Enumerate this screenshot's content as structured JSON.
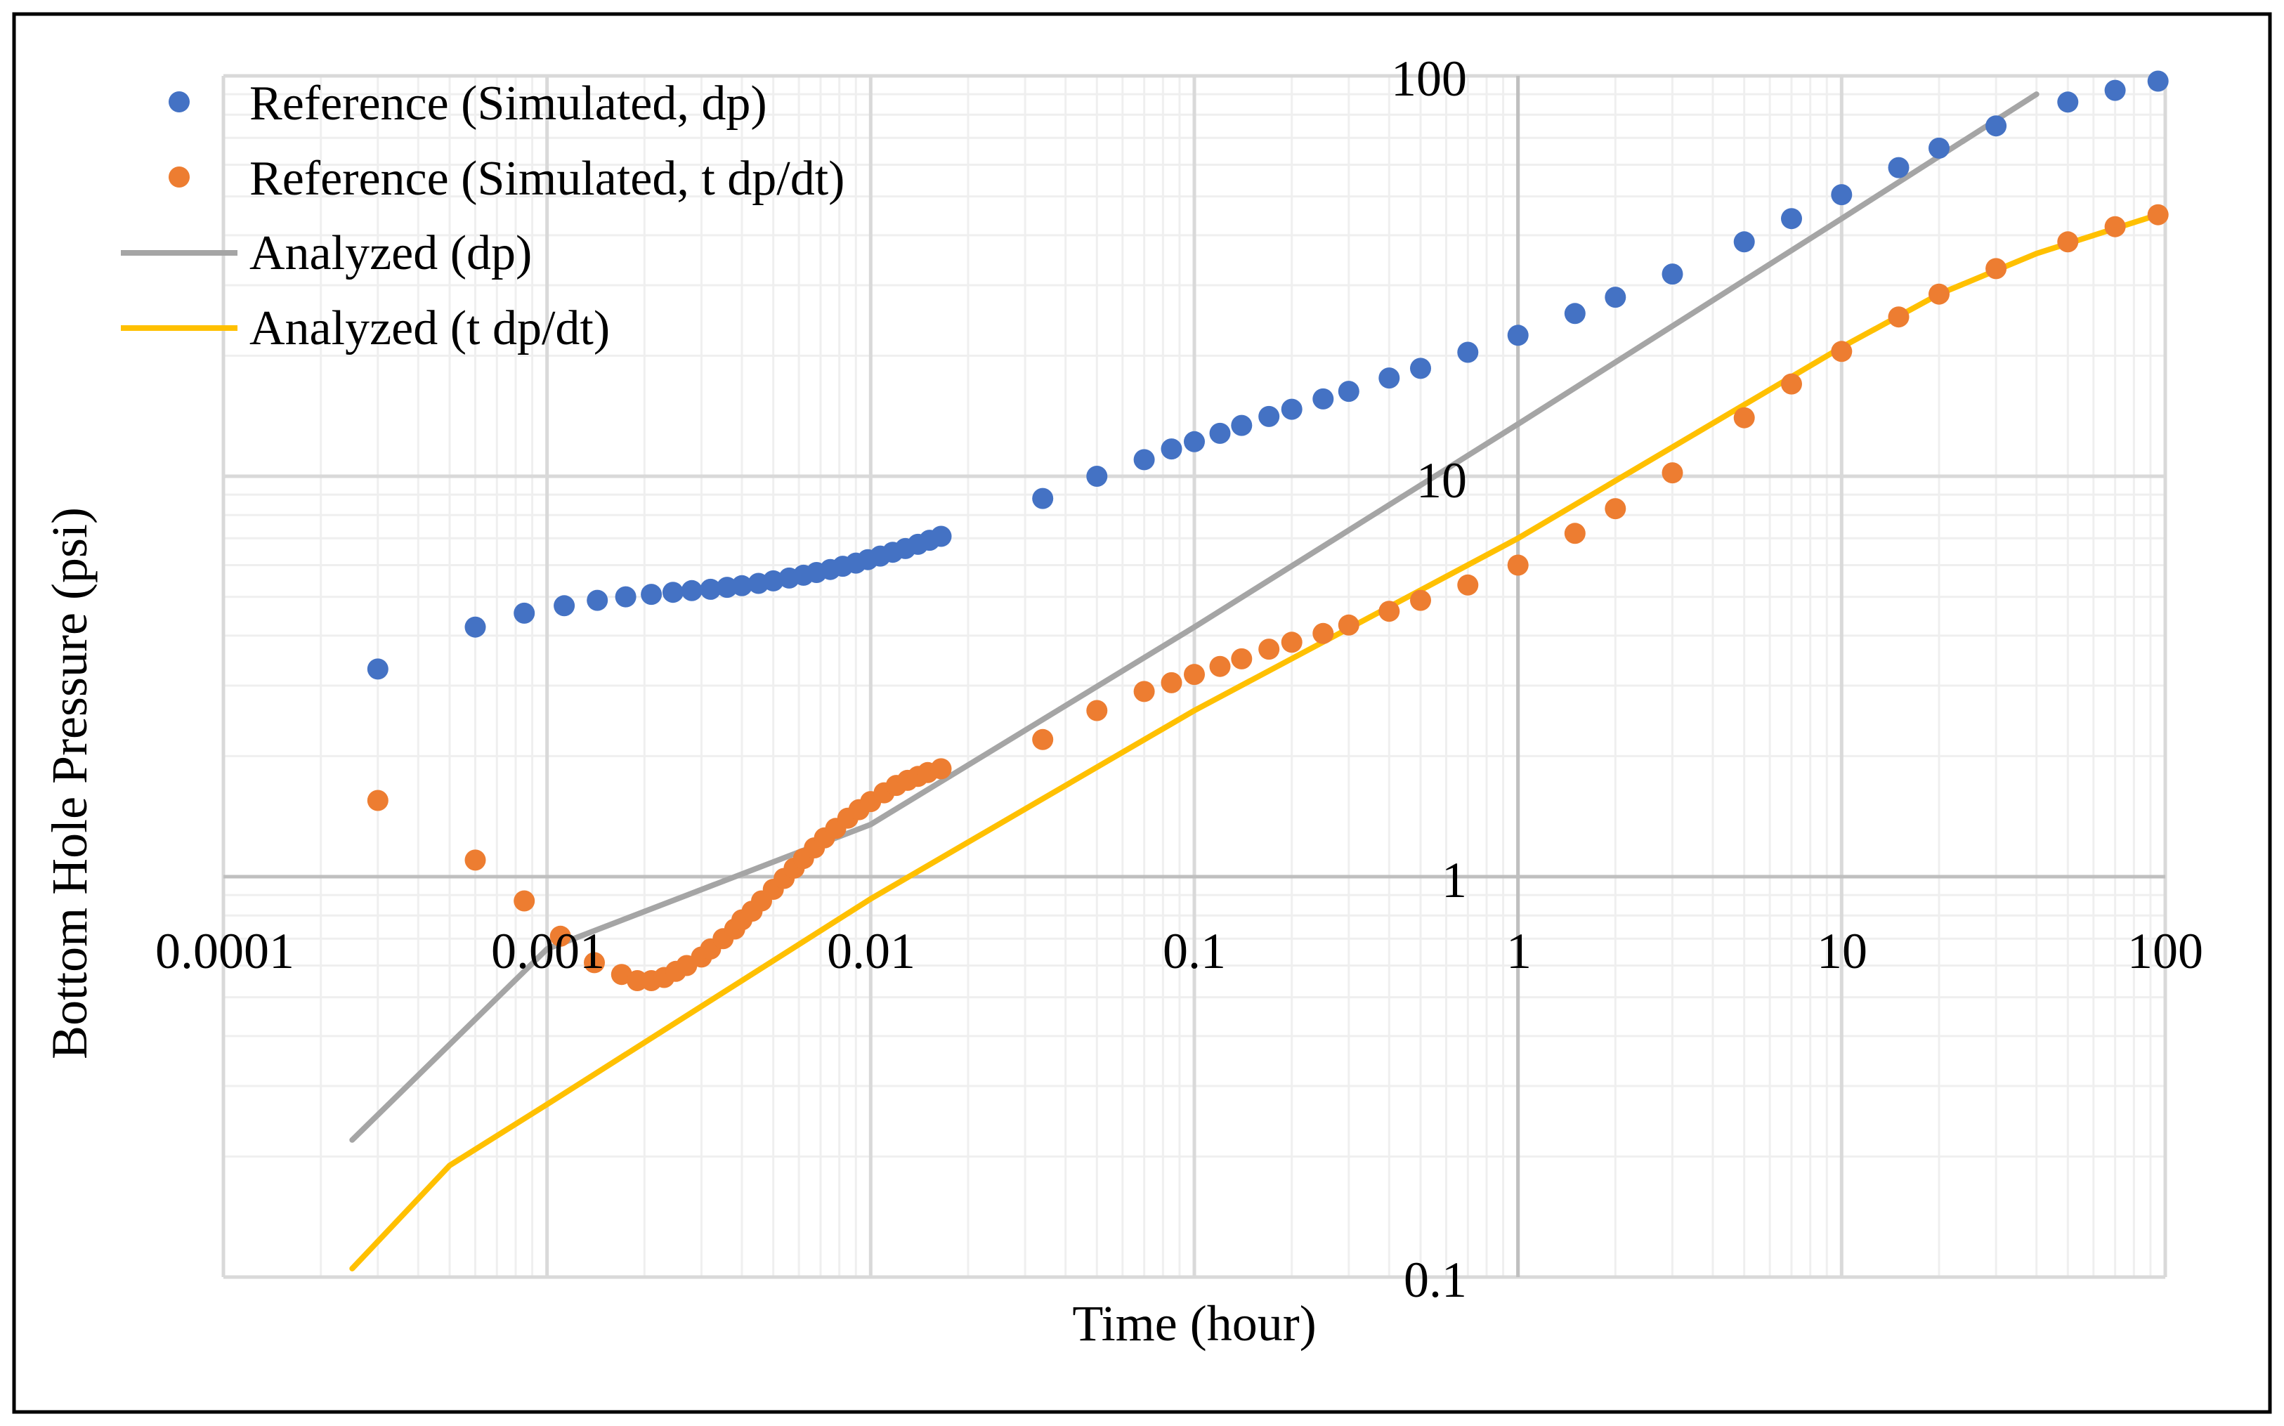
{
  "chart_data": {
    "type": "scatter",
    "xlabel": "Time (hour)",
    "ylabel": "Bottom Hole Pressure (psi)",
    "xscale": "log",
    "yscale": "log",
    "xlim": [
      0.0001,
      100
    ],
    "ylim": [
      0.1,
      100
    ],
    "x_tick_labels": [
      "0.0001",
      "0.001",
      "0.01",
      "0.1",
      "1",
      "10",
      "100"
    ],
    "y_tick_labels": [
      "0.1",
      "1",
      "10",
      "100"
    ],
    "grid": true,
    "legend_position": "top-left",
    "series": [
      {
        "name": "Reference (Simulated, dp)",
        "kind": "points",
        "color": "#4472C4",
        "x": [
          0.0003,
          0.0006,
          0.00085,
          0.00113,
          0.00143,
          0.00175,
          0.0021,
          0.00245,
          0.0028,
          0.0032,
          0.0036,
          0.004,
          0.0045,
          0.005,
          0.0056,
          0.0062,
          0.0068,
          0.0075,
          0.0082,
          0.009,
          0.0098,
          0.0107,
          0.0117,
          0.0128,
          0.014,
          0.0152,
          0.0165,
          0.034,
          0.05,
          0.07,
          0.085,
          0.1,
          0.12,
          0.14,
          0.17,
          0.2,
          0.25,
          0.3,
          0.4,
          0.5,
          0.7,
          1,
          1.5,
          2,
          3,
          5,
          7,
          10,
          15,
          20,
          30,
          50,
          70,
          95
        ],
        "y": [
          3.3,
          4.2,
          4.55,
          4.75,
          4.9,
          5.0,
          5.07,
          5.13,
          5.18,
          5.22,
          5.28,
          5.33,
          5.4,
          5.48,
          5.57,
          5.66,
          5.75,
          5.85,
          5.96,
          6.07,
          6.19,
          6.32,
          6.46,
          6.6,
          6.76,
          6.92,
          7.08,
          8.8,
          10.0,
          11.0,
          11.7,
          12.2,
          12.8,
          13.4,
          14.1,
          14.7,
          15.6,
          16.3,
          17.6,
          18.6,
          20.4,
          22.5,
          25.5,
          28.0,
          32.0,
          38.5,
          44.0,
          50.5,
          59.0,
          66.0,
          75.0,
          86.0,
          92.0,
          97.0
        ]
      },
      {
        "name": "Reference (Simulated, t dp/dt)",
        "kind": "points",
        "color": "#ED7D31",
        "x": [
          0.0003,
          0.0006,
          0.00085,
          0.0011,
          0.0014,
          0.0017,
          0.0019,
          0.0021,
          0.0023,
          0.0025,
          0.0027,
          0.003,
          0.0032,
          0.0035,
          0.0038,
          0.004,
          0.0043,
          0.0046,
          0.005,
          0.0054,
          0.0058,
          0.0062,
          0.0067,
          0.0072,
          0.0078,
          0.0085,
          0.0092,
          0.01,
          0.011,
          0.012,
          0.013,
          0.014,
          0.015,
          0.0165,
          0.034,
          0.05,
          0.07,
          0.085,
          0.1,
          0.12,
          0.14,
          0.17,
          0.2,
          0.25,
          0.3,
          0.4,
          0.5,
          0.7,
          1,
          1.5,
          2,
          3,
          5,
          7,
          10,
          15,
          20,
          30,
          50,
          70,
          95
        ],
        "y": [
          1.55,
          1.1,
          0.87,
          0.71,
          0.61,
          0.57,
          0.55,
          0.55,
          0.56,
          0.58,
          0.6,
          0.63,
          0.66,
          0.7,
          0.74,
          0.78,
          0.82,
          0.87,
          0.93,
          0.99,
          1.05,
          1.11,
          1.18,
          1.25,
          1.32,
          1.4,
          1.47,
          1.54,
          1.62,
          1.69,
          1.74,
          1.78,
          1.82,
          1.86,
          2.2,
          2.6,
          2.9,
          3.05,
          3.2,
          3.35,
          3.5,
          3.7,
          3.85,
          4.05,
          4.25,
          4.6,
          4.9,
          5.35,
          6.0,
          7.2,
          8.3,
          10.2,
          14.0,
          17.0,
          20.5,
          25.0,
          28.5,
          33.0,
          38.5,
          42.0,
          45.0
        ]
      },
      {
        "name": "Analyzed (dp)",
        "kind": "line",
        "color": "#A5A5A5",
        "x": [
          0.00025,
          0.001,
          0.01,
          0.1,
          1,
          10,
          40
        ],
        "y": [
          0.22,
          0.66,
          1.35,
          4.2,
          13.5,
          44.0,
          90.0
        ]
      },
      {
        "name": "Analyzed (t dp/dt)",
        "kind": "line",
        "color": "#FFC000",
        "x": [
          0.00025,
          0.0005,
          0.001,
          0.01,
          0.1,
          1,
          10,
          20,
          40,
          95
        ],
        "y": [
          0.105,
          0.19,
          0.27,
          0.88,
          2.6,
          7.0,
          21.0,
          28.5,
          36.0,
          45.0
        ]
      }
    ]
  }
}
